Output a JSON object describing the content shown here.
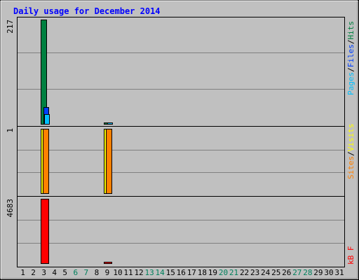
{
  "chart_data": {
    "type": "bar",
    "title": "Daily usage for December 2014",
    "days": [
      "1",
      "2",
      "3",
      "4",
      "5",
      "6",
      "7",
      "8",
      "9",
      "10",
      "11",
      "12",
      "13",
      "14",
      "15",
      "16",
      "17",
      "18",
      "19",
      "20",
      "21",
      "22",
      "23",
      "24",
      "25",
      "26",
      "27",
      "28",
      "29",
      "30",
      "31"
    ],
    "weekend_days": [
      "6",
      "7",
      "13",
      "14",
      "20",
      "21",
      "27",
      "28"
    ],
    "panels": {
      "hits": {
        "scale_label": "217",
        "legend": [
          "Pages",
          "/",
          "Files",
          "/",
          "Hits"
        ],
        "ymax": 217,
        "series": [
          {
            "name": "Hits",
            "color": "#008040",
            "values": [
              0,
              0,
              217,
              0,
              0,
              0,
              0,
              0,
              3,
              0,
              0,
              0,
              0,
              0,
              0,
              0,
              0,
              0,
              0,
              0,
              0,
              0,
              0,
              0,
              0,
              0,
              0,
              0,
              0,
              0,
              0
            ]
          },
          {
            "name": "Files",
            "color": "#0040ff",
            "values": [
              0,
              0,
              35,
              0,
              0,
              0,
              0,
              0,
              0,
              0,
              0,
              0,
              0,
              0,
              0,
              0,
              0,
              0,
              0,
              0,
              0,
              0,
              0,
              0,
              0,
              0,
              0,
              0,
              0,
              0,
              0
            ]
          },
          {
            "name": "Pages",
            "color": "#00c0ff",
            "values": [
              0,
              0,
              20,
              0,
              0,
              0,
              0,
              0,
              3,
              0,
              0,
              0,
              0,
              0,
              0,
              0,
              0,
              0,
              0,
              0,
              0,
              0,
              0,
              0,
              0,
              0,
              0,
              0,
              0,
              0,
              0
            ]
          }
        ]
      },
      "visits": {
        "scale_label": "1",
        "legend": [
          "Sites",
          "/",
          "Visits"
        ],
        "ymax": 1,
        "series": [
          {
            "name": "Visits",
            "color": "#ffff00",
            "values": [
              0,
              0,
              1,
              0,
              0,
              0,
              0,
              0,
              1,
              0,
              0,
              0,
              0,
              0,
              0,
              0,
              0,
              0,
              0,
              0,
              0,
              0,
              0,
              0,
              0,
              0,
              0,
              0,
              0,
              0,
              0
            ]
          },
          {
            "name": "Sites",
            "color": "#ff8000",
            "values": [
              0,
              0,
              1,
              0,
              0,
              0,
              0,
              0,
              1,
              0,
              0,
              0,
              0,
              0,
              0,
              0,
              0,
              0,
              0,
              0,
              0,
              0,
              0,
              0,
              0,
              0,
              0,
              0,
              0,
              0,
              0
            ]
          }
        ]
      },
      "kbytes": {
        "scale_label": "4683",
        "legend": [
          "kB F"
        ],
        "ymax": 4683,
        "series": [
          {
            "name": "kB F",
            "color": "#ff0000",
            "values": [
              0,
              0,
              4683,
              0,
              0,
              0,
              0,
              0,
              10,
              0,
              0,
              0,
              0,
              0,
              0,
              0,
              0,
              0,
              0,
              0,
              0,
              0,
              0,
              0,
              0,
              0,
              0,
              0,
              0,
              0,
              0
            ]
          }
        ]
      }
    },
    "colors": {
      "background": "#c0c0c0",
      "title": "#0000ff",
      "weekday_label": "#000000",
      "weekend_label": "#00805c",
      "legend_slash": "#000000"
    }
  }
}
